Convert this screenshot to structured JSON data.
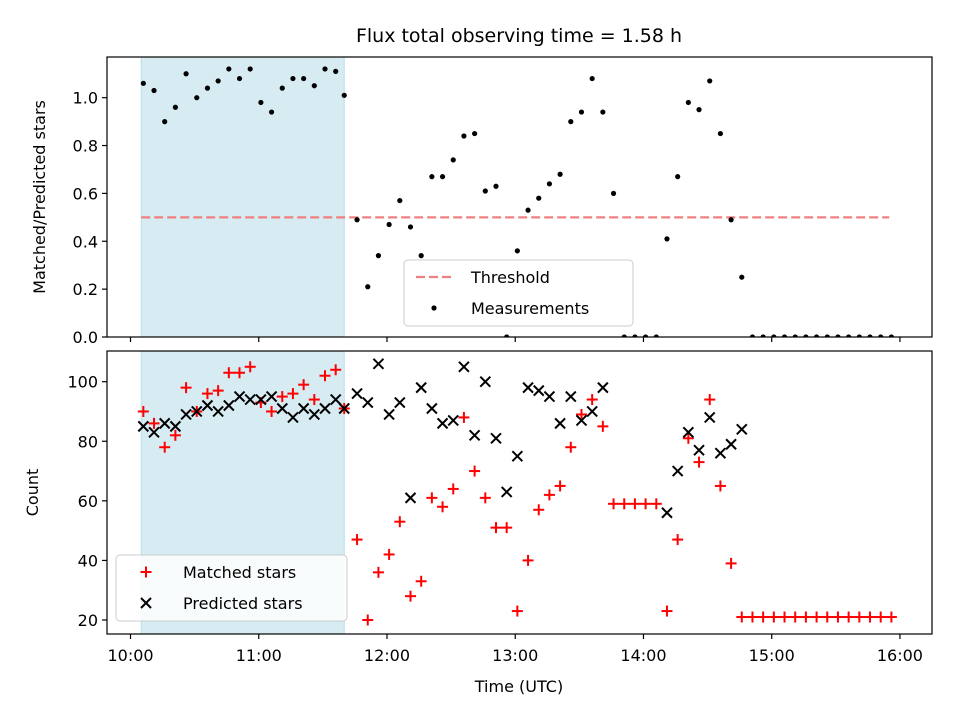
{
  "chart_data": {
    "title": "Flux total observing time = 1.58 h",
    "xlabel": "Time (UTC)",
    "xlim": [
      "09:49",
      "16:15"
    ],
    "x_ticks": [
      "10:00",
      "11:00",
      "12:00",
      "13:00",
      "14:00",
      "15:00",
      "16:00"
    ],
    "shaded_region": {
      "from": "10:05",
      "to": "11:40",
      "color": "#add8e6"
    },
    "colors": {
      "threshold": "#f08080",
      "measurements": "#000000",
      "matched": "#ff0000",
      "predicted": "#000000",
      "shade": "#add8e6"
    },
    "panels": [
      {
        "type": "scatter",
        "ylabel": "Matched/Predicted stars",
        "ylim": [
          0,
          1.17
        ],
        "y_ticks": [
          "0.0",
          "0.2",
          "0.4",
          "0.6",
          "0.8",
          "1.0"
        ],
        "legend_position": "bottom-center",
        "legend": [
          "Threshold",
          "Measurements"
        ],
        "threshold": {
          "name": "Threshold",
          "value": 0.5,
          "x_from": "10:05",
          "x_to": "15:55",
          "style": "dashed"
        },
        "series": [
          {
            "name": "Measurements",
            "marker": "dot",
            "points": [
              [
                "10:06",
                1.06
              ],
              [
                "10:11",
                1.03
              ],
              [
                "10:16",
                0.9
              ],
              [
                "10:21",
                0.96
              ],
              [
                "10:26",
                1.1
              ],
              [
                "10:31",
                1.0
              ],
              [
                "10:36",
                1.04
              ],
              [
                "10:41",
                1.07
              ],
              [
                "10:46",
                1.12
              ],
              [
                "10:51",
                1.08
              ],
              [
                "10:56",
                1.12
              ],
              [
                "11:01",
                0.98
              ],
              [
                "11:06",
                0.94
              ],
              [
                "11:11",
                1.04
              ],
              [
                "11:16",
                1.08
              ],
              [
                "11:21",
                1.08
              ],
              [
                "11:26",
                1.05
              ],
              [
                "11:31",
                1.12
              ],
              [
                "11:36",
                1.11
              ],
              [
                "11:40",
                1.01
              ],
              [
                "11:46",
                0.49
              ],
              [
                "11:51",
                0.21
              ],
              [
                "11:56",
                0.34
              ],
              [
                "12:01",
                0.47
              ],
              [
                "12:06",
                0.57
              ],
              [
                "12:11",
                0.46
              ],
              [
                "12:16",
                0.34
              ],
              [
                "12:21",
                0.67
              ],
              [
                "12:26",
                0.67
              ],
              [
                "12:31",
                0.74
              ],
              [
                "12:36",
                0.84
              ],
              [
                "12:41",
                0.85
              ],
              [
                "12:46",
                0.61
              ],
              [
                "12:51",
                0.63
              ],
              [
                "12:56",
                0.0
              ],
              [
                "13:01",
                0.36
              ],
              [
                "13:06",
                0.53
              ],
              [
                "13:11",
                0.58
              ],
              [
                "13:16",
                0.64
              ],
              [
                "13:21",
                0.68
              ],
              [
                "13:26",
                0.9
              ],
              [
                "13:31",
                0.94
              ],
              [
                "13:36",
                1.08
              ],
              [
                "13:41",
                0.94
              ],
              [
                "13:46",
                0.6
              ],
              [
                "13:51",
                0.0
              ],
              [
                "13:56",
                0.0
              ],
              [
                "14:01",
                0.0
              ],
              [
                "14:06",
                0.0
              ],
              [
                "14:11",
                0.41
              ],
              [
                "14:16",
                0.67
              ],
              [
                "14:21",
                0.98
              ],
              [
                "14:26",
                0.95
              ],
              [
                "14:31",
                1.07
              ],
              [
                "14:36",
                0.85
              ],
              [
                "14:41",
                0.49
              ],
              [
                "14:46",
                0.25
              ],
              [
                "14:51",
                0.0
              ],
              [
                "14:56",
                0.0
              ],
              [
                "15:01",
                0.0
              ],
              [
                "15:06",
                0.0
              ],
              [
                "15:11",
                0.0
              ],
              [
                "15:16",
                0.0
              ],
              [
                "15:21",
                0.0
              ],
              [
                "15:26",
                0.0
              ],
              [
                "15:31",
                0.0
              ],
              [
                "15:36",
                0.0
              ],
              [
                "15:41",
                0.0
              ],
              [
                "15:46",
                0.0
              ],
              [
                "15:51",
                0.0
              ],
              [
                "15:56",
                0.0
              ]
            ]
          }
        ]
      },
      {
        "type": "scatter",
        "ylabel": "Count",
        "ylim": [
          15.3,
          110.3
        ],
        "y_ticks": [
          "20",
          "40",
          "60",
          "80",
          "100"
        ],
        "legend_position": "bottom-left",
        "legend": [
          "Matched stars",
          "Predicted stars"
        ],
        "series": [
          {
            "name": "Matched stars",
            "marker": "plus",
            "points": [
              [
                "10:06",
                90
              ],
              [
                "10:11",
                86
              ],
              [
                "10:16",
                78
              ],
              [
                "10:21",
                82
              ],
              [
                "10:26",
                98
              ],
              [
                "10:31",
                90
              ],
              [
                "10:36",
                96
              ],
              [
                "10:41",
                97
              ],
              [
                "10:46",
                103
              ],
              [
                "10:51",
                103
              ],
              [
                "10:56",
                105
              ],
              [
                "11:01",
                93
              ],
              [
                "11:06",
                90
              ],
              [
                "11:11",
                95
              ],
              [
                "11:16",
                96
              ],
              [
                "11:21",
                99
              ],
              [
                "11:26",
                94
              ],
              [
                "11:31",
                102
              ],
              [
                "11:36",
                104
              ],
              [
                "11:40",
                91
              ],
              [
                "11:46",
                47
              ],
              [
                "11:51",
                20
              ],
              [
                "11:56",
                36
              ],
              [
                "12:01",
                42
              ],
              [
                "12:06",
                53
              ],
              [
                "12:11",
                28
              ],
              [
                "12:16",
                33
              ],
              [
                "12:21",
                61
              ],
              [
                "12:26",
                58
              ],
              [
                "12:31",
                64
              ],
              [
                "12:36",
                88
              ],
              [
                "12:41",
                70
              ],
              [
                "12:46",
                61
              ],
              [
                "12:51",
                51
              ],
              [
                "12:56",
                51
              ],
              [
                "13:01",
                23
              ],
              [
                "13:06",
                40
              ],
              [
                "13:11",
                57
              ],
              [
                "13:16",
                62
              ],
              [
                "13:21",
                65
              ],
              [
                "13:26",
                78
              ],
              [
                "13:31",
                89
              ],
              [
                "13:36",
                94
              ],
              [
                "13:41",
                85
              ],
              [
                "13:46",
                59
              ],
              [
                "13:51",
                59
              ],
              [
                "13:56",
                59
              ],
              [
                "14:01",
                59
              ],
              [
                "14:06",
                59
              ],
              [
                "14:11",
                23
              ],
              [
                "14:16",
                47
              ],
              [
                "14:21",
                81
              ],
              [
                "14:26",
                73
              ],
              [
                "14:31",
                94
              ],
              [
                "14:36",
                65
              ],
              [
                "14:41",
                39
              ],
              [
                "14:46",
                21
              ],
              [
                "14:51",
                21
              ],
              [
                "14:56",
                21
              ],
              [
                "15:01",
                21
              ],
              [
                "15:06",
                21
              ],
              [
                "15:11",
                21
              ],
              [
                "15:16",
                21
              ],
              [
                "15:21",
                21
              ],
              [
                "15:26",
                21
              ],
              [
                "15:31",
                21
              ],
              [
                "15:36",
                21
              ],
              [
                "15:41",
                21
              ],
              [
                "15:46",
                21
              ],
              [
                "15:51",
                21
              ],
              [
                "15:56",
                21
              ]
            ]
          },
          {
            "name": "Predicted stars",
            "marker": "x",
            "points": [
              [
                "10:06",
                85
              ],
              [
                "10:11",
                83
              ],
              [
                "10:16",
                86
              ],
              [
                "10:21",
                85
              ],
              [
                "10:26",
                89
              ],
              [
                "10:31",
                90
              ],
              [
                "10:36",
                92
              ],
              [
                "10:41",
                90
              ],
              [
                "10:46",
                92
              ],
              [
                "10:51",
                95
              ],
              [
                "10:56",
                94
              ],
              [
                "11:01",
                94
              ],
              [
                "11:06",
                95
              ],
              [
                "11:11",
                91
              ],
              [
                "11:16",
                88
              ],
              [
                "11:21",
                91
              ],
              [
                "11:26",
                89
              ],
              [
                "11:31",
                91
              ],
              [
                "11:36",
                94
              ],
              [
                "11:40",
                91
              ],
              [
                "11:46",
                96
              ],
              [
                "11:51",
                93
              ],
              [
                "11:56",
                106
              ],
              [
                "12:01",
                89
              ],
              [
                "12:06",
                93
              ],
              [
                "12:11",
                61
              ],
              [
                "12:16",
                98
              ],
              [
                "12:21",
                91
              ],
              [
                "12:26",
                86
              ],
              [
                "12:31",
                87
              ],
              [
                "12:36",
                105
              ],
              [
                "12:41",
                82
              ],
              [
                "12:46",
                100
              ],
              [
                "12:51",
                81
              ],
              [
                "12:56",
                63
              ],
              [
                "13:01",
                75
              ],
              [
                "13:06",
                98
              ],
              [
                "13:11",
                97
              ],
              [
                "13:16",
                95
              ],
              [
                "13:21",
                86
              ],
              [
                "13:26",
                95
              ],
              [
                "13:31",
                87
              ],
              [
                "13:36",
                90
              ],
              [
                "13:41",
                98
              ],
              [
                "14:11",
                56
              ],
              [
                "14:16",
                70
              ],
              [
                "14:21",
                83
              ],
              [
                "14:26",
                77
              ],
              [
                "14:31",
                88
              ],
              [
                "14:36",
                76
              ],
              [
                "14:41",
                79
              ],
              [
                "14:46",
                84
              ]
            ]
          }
        ]
      }
    ]
  }
}
